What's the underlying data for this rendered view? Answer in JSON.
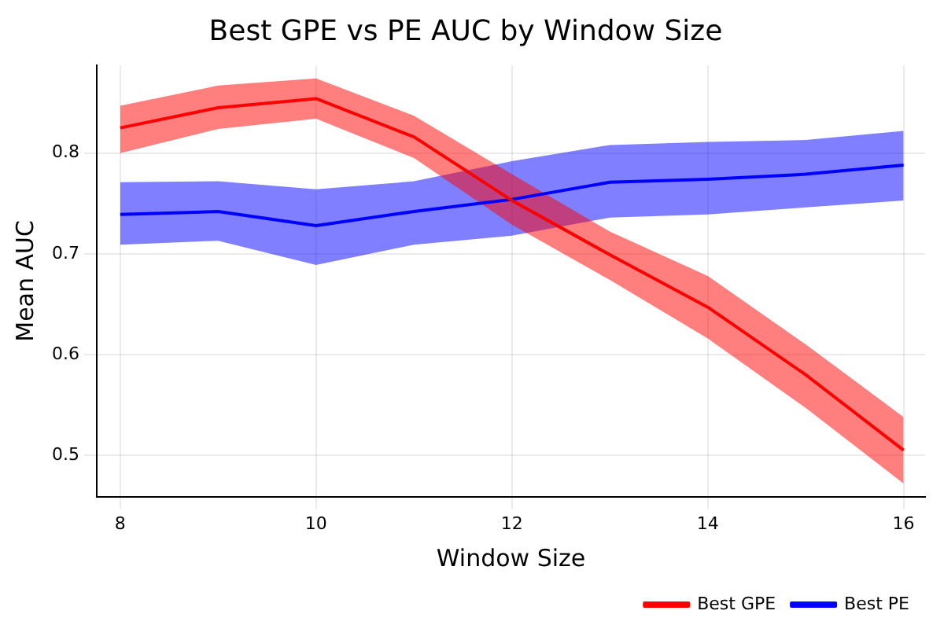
{
  "chart_data": {
    "type": "line",
    "title": "Best GPE vs PE AUC by Window Size",
    "xlabel": "Window Size",
    "ylabel": "Mean AUC",
    "x": [
      8,
      9,
      10,
      11,
      12,
      13,
      14,
      15,
      16
    ],
    "series": [
      {
        "name": "Best GPE",
        "color": "#ff0000",
        "values": [
          0.825,
          0.845,
          0.854,
          0.816,
          0.753,
          0.699,
          0.647,
          0.58,
          0.505
        ],
        "lower": [
          0.8,
          0.824,
          0.834,
          0.795,
          0.729,
          0.674,
          0.616,
          0.547,
          0.472
        ],
        "upper": [
          0.847,
          0.867,
          0.874,
          0.837,
          0.779,
          0.722,
          0.678,
          0.61,
          0.538
        ]
      },
      {
        "name": "Best PE",
        "color": "#0000ff",
        "values": [
          0.739,
          0.742,
          0.728,
          0.742,
          0.754,
          0.771,
          0.774,
          0.779,
          0.788
        ],
        "lower": [
          0.709,
          0.713,
          0.689,
          0.709,
          0.718,
          0.736,
          0.739,
          0.746,
          0.753
        ],
        "upper": [
          0.771,
          0.772,
          0.764,
          0.772,
          0.792,
          0.808,
          0.811,
          0.813,
          0.822
        ]
      }
    ],
    "xlim": [
      7.76,
      16.22
    ],
    "ylim": [
      0.459,
      0.887
    ],
    "xticks": [
      8,
      10,
      12,
      14,
      16
    ],
    "yticks": [
      0.5,
      0.6,
      0.7,
      0.8
    ],
    "grid": true,
    "legend": "bottom right",
    "marker": "none",
    "line_style": "solid"
  }
}
